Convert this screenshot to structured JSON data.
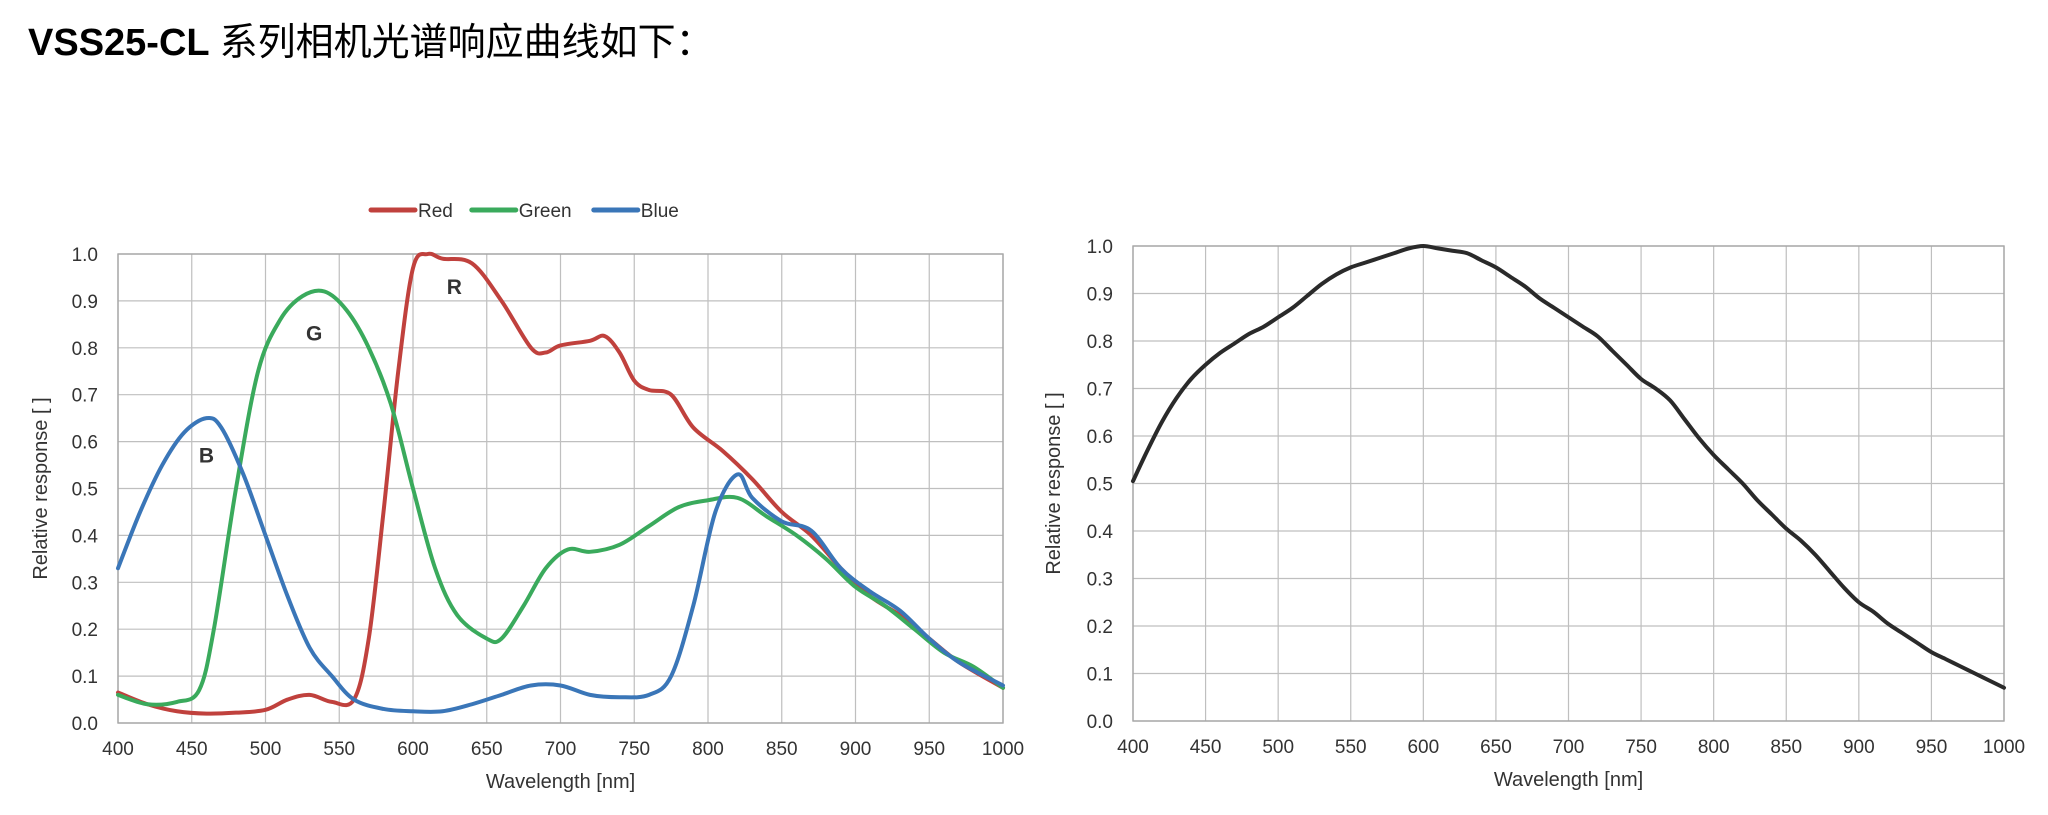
{
  "heading": {
    "model": "VSS25-CL",
    "text": "系列相机光谱响应曲线如下："
  },
  "chart_data": [
    {
      "type": "line",
      "xlabel": "Wavelength [nm]",
      "ylabel": "Relative response [ ]",
      "xlim": [
        400,
        1000
      ],
      "ylim": [
        0,
        1.0
      ],
      "xticks": [
        "400",
        "450",
        "500",
        "550",
        "600",
        "650",
        "700",
        "750",
        "800",
        "850",
        "900",
        "950",
        "1000"
      ],
      "yticks": [
        "0.0",
        "0.1",
        "0.2",
        "0.3",
        "0.4",
        "0.5",
        "0.6",
        "0.7",
        "0.8",
        "0.9",
        "1.0"
      ],
      "grid": true,
      "legend_position": "top-center",
      "annotations": [
        {
          "text": "B",
          "x": 460,
          "y": 0.57
        },
        {
          "text": "G",
          "x": 533,
          "y": 0.83
        },
        {
          "text": "R",
          "x": 628,
          "y": 0.93
        }
      ],
      "series": [
        {
          "name": "Red",
          "color": "#c0413d",
          "x": [
            400,
            420,
            440,
            460,
            480,
            500,
            515,
            530,
            545,
            560,
            570,
            580,
            590,
            600,
            610,
            620,
            640,
            660,
            680,
            690,
            700,
            720,
            730,
            740,
            750,
            760,
            775,
            790,
            810,
            830,
            850,
            870,
            890,
            910,
            930,
            950,
            970,
            1000
          ],
          "y": [
            0.065,
            0.04,
            0.025,
            0.02,
            0.022,
            0.028,
            0.05,
            0.06,
            0.045,
            0.05,
            0.18,
            0.45,
            0.75,
            0.97,
            1.0,
            0.99,
            0.98,
            0.9,
            0.8,
            0.79,
            0.805,
            0.815,
            0.825,
            0.79,
            0.73,
            0.71,
            0.7,
            0.63,
            0.58,
            0.52,
            0.45,
            0.4,
            0.33,
            0.27,
            0.23,
            0.18,
            0.13,
            0.075
          ]
        },
        {
          "name": "Green",
          "color": "#3aaa5c",
          "x": [
            400,
            420,
            440,
            455,
            465,
            480,
            495,
            510,
            525,
            540,
            555,
            570,
            585,
            600,
            615,
            630,
            650,
            660,
            675,
            690,
            705,
            720,
            740,
            760,
            780,
            800,
            820,
            840,
            860,
            880,
            900,
            920,
            940,
            960,
            980,
            1000
          ],
          "y": [
            0.06,
            0.04,
            0.045,
            0.07,
            0.2,
            0.5,
            0.75,
            0.86,
            0.91,
            0.92,
            0.88,
            0.8,
            0.68,
            0.5,
            0.33,
            0.23,
            0.18,
            0.18,
            0.25,
            0.33,
            0.37,
            0.365,
            0.38,
            0.42,
            0.46,
            0.475,
            0.48,
            0.44,
            0.4,
            0.35,
            0.29,
            0.25,
            0.2,
            0.15,
            0.12,
            0.075
          ]
        },
        {
          "name": "Blue",
          "color": "#3a76b8",
          "x": [
            400,
            415,
            430,
            445,
            460,
            470,
            485,
            500,
            515,
            530,
            545,
            560,
            580,
            600,
            620,
            640,
            660,
            680,
            700,
            720,
            740,
            760,
            775,
            790,
            805,
            820,
            830,
            850,
            870,
            890,
            910,
            930,
            950,
            970,
            1000
          ],
          "y": [
            0.33,
            0.45,
            0.55,
            0.62,
            0.65,
            0.63,
            0.53,
            0.4,
            0.27,
            0.16,
            0.1,
            0.05,
            0.03,
            0.025,
            0.025,
            0.04,
            0.06,
            0.08,
            0.08,
            0.06,
            0.055,
            0.06,
            0.1,
            0.25,
            0.45,
            0.53,
            0.48,
            0.43,
            0.41,
            0.33,
            0.28,
            0.24,
            0.18,
            0.13,
            0.08
          ]
        }
      ]
    },
    {
      "type": "line",
      "xlabel": "Wavelength [nm]",
      "ylabel": "Relative response [ ]",
      "xlim": [
        400,
        1000
      ],
      "ylim": [
        0,
        1.0
      ],
      "xticks": [
        "400",
        "450",
        "500",
        "550",
        "600",
        "650",
        "700",
        "750",
        "800",
        "850",
        "900",
        "950",
        "1000"
      ],
      "yticks": [
        "0.0",
        "0.1",
        "0.2",
        "0.3",
        "0.4",
        "0.5",
        "0.6",
        "0.7",
        "0.8",
        "0.9",
        "1.0"
      ],
      "grid": true,
      "series": [
        {
          "color": "#2a2a2a",
          "x": [
            400,
            410,
            420,
            430,
            440,
            450,
            460,
            470,
            480,
            490,
            500,
            510,
            520,
            530,
            540,
            550,
            560,
            570,
            580,
            590,
            600,
            610,
            620,
            630,
            640,
            650,
            660,
            670,
            680,
            690,
            700,
            710,
            720,
            730,
            740,
            750,
            760,
            770,
            780,
            790,
            800,
            810,
            820,
            830,
            840,
            850,
            860,
            870,
            880,
            890,
            900,
            910,
            920,
            930,
            940,
            950,
            960,
            970,
            980,
            990,
            1000
          ],
          "y": [
            0.505,
            0.57,
            0.63,
            0.68,
            0.72,
            0.75,
            0.775,
            0.795,
            0.815,
            0.83,
            0.85,
            0.87,
            0.895,
            0.92,
            0.94,
            0.955,
            0.965,
            0.975,
            0.985,
            0.995,
            1.0,
            0.995,
            0.99,
            0.985,
            0.97,
            0.955,
            0.935,
            0.915,
            0.89,
            0.87,
            0.85,
            0.83,
            0.81,
            0.78,
            0.75,
            0.72,
            0.7,
            0.675,
            0.635,
            0.595,
            0.56,
            0.53,
            0.5,
            0.465,
            0.435,
            0.405,
            0.38,
            0.35,
            0.315,
            0.28,
            0.25,
            0.23,
            0.205,
            0.185,
            0.165,
            0.145,
            0.13,
            0.115,
            0.1,
            0.085,
            0.07
          ]
        }
      ]
    }
  ]
}
